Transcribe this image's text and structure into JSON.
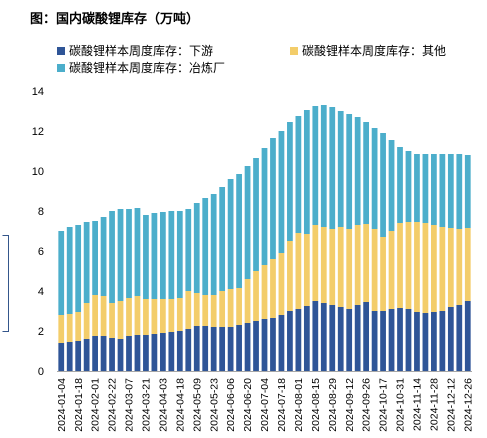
{
  "chart_data": {
    "type": "bar",
    "stacked": true,
    "title": "图：国内碳酸锂库存（万吨）",
    "legend_position": "top",
    "grid": false,
    "ylim": [
      0,
      14
    ],
    "yticks": [
      0,
      2,
      4,
      6,
      8,
      10,
      12,
      14
    ],
    "categories": [
      "2024-01-04",
      "",
      "2024-01-18",
      "",
      "2024-02-01",
      "",
      "2024-02-22",
      "",
      "2024-03-07",
      "",
      "2024-03-21",
      "",
      "2024-04-03",
      "",
      "2024-04-18",
      "",
      "2024-05-09",
      "",
      "2024-05-23",
      "",
      "2024-06-06",
      "",
      "2024-06-20",
      "",
      "2024-07-04",
      "",
      "2024-07-18",
      "",
      "2024-08-01",
      "",
      "2024-08-15",
      "",
      "2024-08-29",
      "",
      "2024-09-12",
      "",
      "2024-09-26",
      "",
      "2024-10-17",
      "",
      "2024-10-31",
      "",
      "2024-11-14",
      "",
      "2024-11-28",
      "",
      "2024-12-12",
      "",
      "2024-12-26"
    ],
    "series": [
      {
        "name": "碳酸锂样本周度库存：下游",
        "color": "#2f5597",
        "values": [
          1.4,
          1.45,
          1.5,
          1.6,
          1.75,
          1.75,
          1.65,
          1.6,
          1.75,
          1.8,
          1.8,
          1.85,
          1.9,
          1.95,
          2.0,
          2.1,
          2.25,
          2.25,
          2.2,
          2.2,
          2.2,
          2.3,
          2.4,
          2.5,
          2.6,
          2.65,
          2.8,
          3.0,
          3.1,
          3.25,
          3.5,
          3.4,
          3.3,
          3.2,
          3.1,
          3.3,
          3.45,
          3.0,
          3.0,
          3.1,
          3.15,
          3.1,
          2.95,
          2.9,
          2.95,
          3.0,
          3.2,
          3.3,
          3.5
        ]
      },
      {
        "name": "碳酸锂样本周度库存：其他",
        "color": "#f3cd6a",
        "values": [
          1.4,
          1.4,
          1.45,
          1.8,
          2.05,
          2.0,
          1.75,
          1.9,
          1.9,
          1.95,
          1.8,
          1.75,
          1.7,
          1.65,
          1.65,
          1.9,
          1.65,
          1.55,
          1.6,
          1.8,
          1.9,
          1.85,
          2.2,
          2.5,
          2.7,
          2.95,
          3.1,
          3.5,
          3.8,
          3.6,
          3.8,
          3.8,
          3.8,
          4.0,
          4.0,
          4.0,
          3.9,
          4.1,
          3.7,
          3.9,
          4.25,
          4.35,
          4.5,
          4.5,
          4.35,
          4.2,
          3.95,
          3.8,
          3.65
        ]
      },
      {
        "name": "碳酸锂样本周度库存：冶炼厂",
        "color": "#4caecb",
        "values": [
          4.2,
          4.35,
          4.35,
          4.05,
          3.7,
          3.95,
          4.6,
          4.6,
          4.45,
          4.4,
          4.2,
          4.3,
          4.35,
          4.4,
          4.35,
          4.1,
          4.5,
          4.85,
          5.05,
          5.2,
          5.5,
          5.7,
          5.65,
          5.65,
          5.85,
          6.05,
          6.1,
          5.95,
          5.85,
          6.2,
          5.95,
          6.1,
          6.1,
          5.8,
          5.75,
          5.4,
          5.1,
          5.05,
          5.2,
          4.55,
          3.8,
          3.55,
          3.4,
          3.45,
          3.55,
          3.65,
          3.7,
          3.75,
          3.65
        ]
      }
    ]
  }
}
